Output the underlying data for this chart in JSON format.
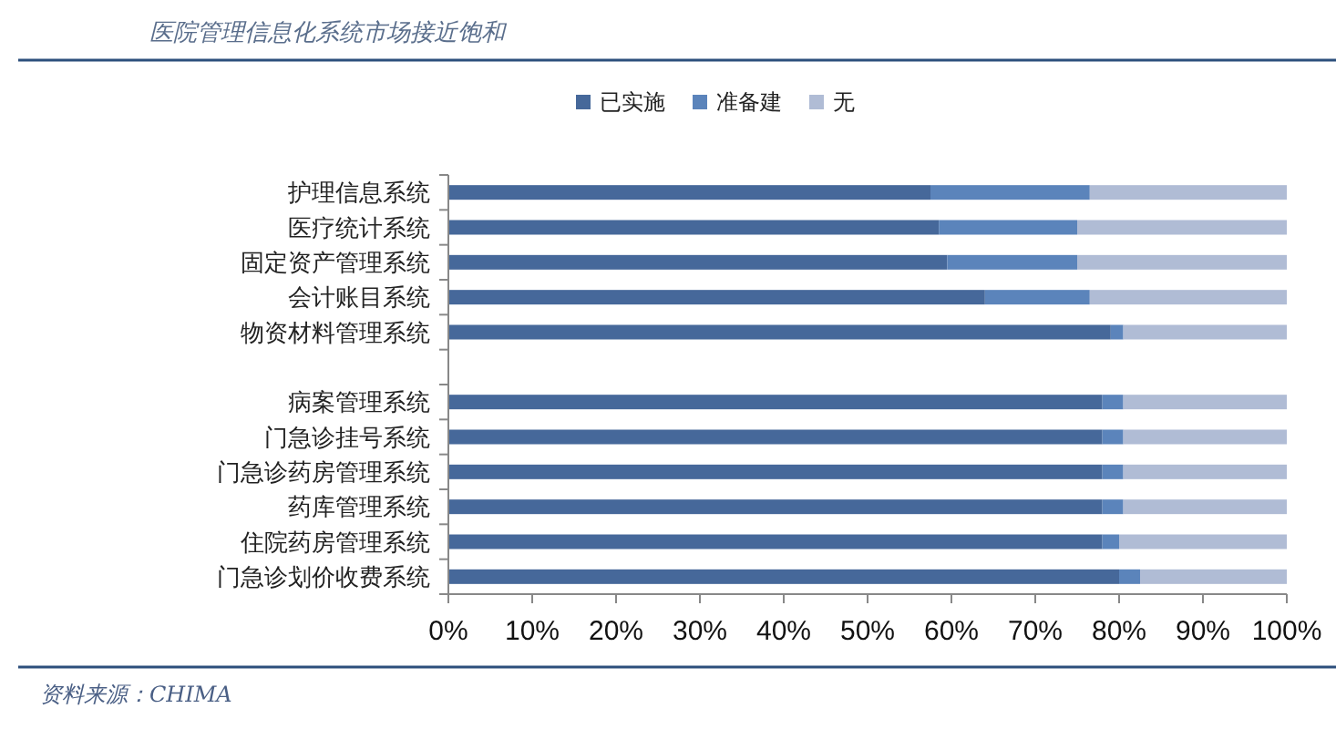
{
  "chart_data": {
    "type": "bar",
    "orientation": "horizontal",
    "stacked": true,
    "title": "医院管理信息化系统市场接近饱和",
    "categories": [
      "护理信息系统",
      "医疗统计系统",
      "固定资产管理系统",
      "会计账目系统",
      "物资材料管理系统",
      null,
      "病案管理系统",
      "门急诊挂号系统",
      "门急诊药房管理系统",
      "药库管理系统",
      "住院药房管理系统",
      "门急诊划价收费系统"
    ],
    "series": [
      {
        "name": "已实施",
        "color": "#46689a",
        "values": [
          57.5,
          58.5,
          59.5,
          64,
          79,
          null,
          78,
          78,
          78,
          78,
          78,
          80
        ]
      },
      {
        "name": "准备建",
        "color": "#5b84bb",
        "values": [
          19,
          16.5,
          15.5,
          12.5,
          1.5,
          null,
          2.5,
          2.5,
          2.5,
          2.5,
          2,
          2.5
        ]
      },
      {
        "name": "无",
        "color": "#b0bcd5",
        "values": [
          23.5,
          25,
          25,
          23.5,
          19.5,
          null,
          19.5,
          19.5,
          19.5,
          19.5,
          20,
          17.5
        ]
      }
    ],
    "xlim": [
      0,
      100
    ],
    "xticks": [
      {
        "value": 0,
        "label": "0%"
      },
      {
        "value": 10,
        "label": "10%"
      },
      {
        "value": 20,
        "label": "20%"
      },
      {
        "value": 30,
        "label": "30%"
      },
      {
        "value": 40,
        "label": "40%"
      },
      {
        "value": 50,
        "label": "50%"
      },
      {
        "value": 60,
        "label": "60%"
      },
      {
        "value": 70,
        "label": "70%"
      },
      {
        "value": 80,
        "label": "80%"
      },
      {
        "value": 90,
        "label": "90%"
      },
      {
        "value": 100,
        "label": "100%"
      }
    ],
    "legend": "top",
    "grid": false,
    "annotations": [
      "资料来源：CHIMA"
    ]
  }
}
